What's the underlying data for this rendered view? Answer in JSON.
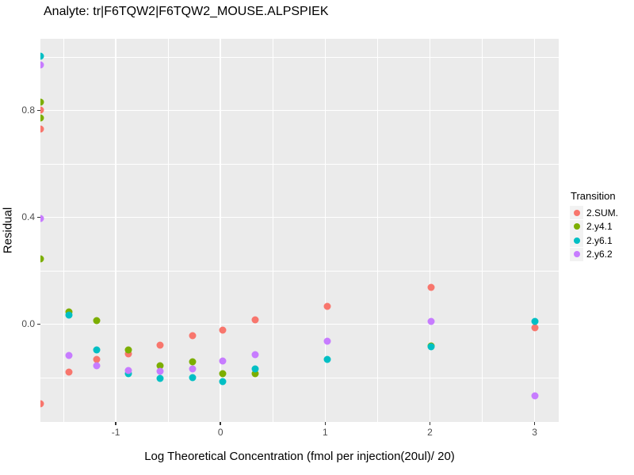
{
  "chart_data": {
    "type": "scatter",
    "title": "Analyte: tr|F6TQW2|F6TQW2_MOUSE.ALPSPIEK",
    "xlabel": "Log Theoretical Concentration (fmol per injection(20ul)/ 20)",
    "ylabel": "Residual",
    "xlim": [
      -1.72,
      3.23
    ],
    "ylim": [
      -0.366,
      1.068
    ],
    "x_ticks": [
      -1,
      0,
      1,
      2,
      3
    ],
    "x_tick_labels": [
      "-1",
      "0",
      "1",
      "2",
      "3"
    ],
    "y_ticks": [
      0.0,
      0.4,
      0.8
    ],
    "y_tick_labels": [
      "0.0",
      "0.4",
      "0.8"
    ],
    "x_minor_ticks": [
      -1.5,
      -0.5,
      0.5,
      1.5,
      2.5
    ],
    "y_minor_ticks": [
      -0.2,
      0.2,
      0.6,
      1.0
    ],
    "grid": "on",
    "legend": {
      "title": "Transition",
      "position": "right"
    },
    "colors": {
      "panel_bg": "#EBEBEB",
      "gridline": "#FFFFFF",
      "tick_label": "#4D4D4D",
      "text": "#000000",
      "legend_key_bg": "#F2F2F2"
    },
    "series": [
      {
        "name": "2.SUM.",
        "color": "#F8766D",
        "points": [
          [
            -1.72,
            0.801
          ],
          [
            -1.72,
            0.73
          ],
          [
            -1.72,
            -0.298
          ],
          [
            -1.45,
            -0.179
          ],
          [
            -1.18,
            -0.132
          ],
          [
            -0.88,
            -0.111
          ],
          [
            -0.58,
            -0.079
          ],
          [
            -0.27,
            -0.043
          ],
          [
            0.02,
            -0.022
          ],
          [
            0.33,
            0.016
          ],
          [
            1.02,
            0.067
          ],
          [
            2.01,
            0.138
          ],
          [
            3.0,
            -0.013
          ]
        ]
      },
      {
        "name": "2.y4.1",
        "color": "#7CAE00",
        "points": [
          [
            -1.72,
            0.831
          ],
          [
            -1.72,
            0.772
          ],
          [
            -1.72,
            0.244
          ],
          [
            -1.45,
            0.045
          ],
          [
            -1.18,
            0.013
          ],
          [
            -0.88,
            -0.096
          ],
          [
            -0.58,
            -0.156
          ],
          [
            -0.27,
            -0.141
          ],
          [
            0.02,
            -0.185
          ],
          [
            0.33,
            -0.185
          ],
          [
            2.01,
            -0.081
          ]
        ]
      },
      {
        "name": "2.y6.1",
        "color": "#00BFC4",
        "points": [
          [
            -1.72,
            1.003
          ],
          [
            -1.45,
            0.034
          ],
          [
            -1.18,
            -0.096
          ],
          [
            -0.88,
            -0.185
          ],
          [
            -0.58,
            -0.203
          ],
          [
            -0.27,
            -0.2
          ],
          [
            0.02,
            -0.215
          ],
          [
            0.33,
            -0.167
          ],
          [
            1.02,
            -0.132
          ],
          [
            2.01,
            -0.084
          ],
          [
            3.0,
            0.01
          ]
        ]
      },
      {
        "name": "2.y6.2",
        "color": "#C77CFF",
        "points": [
          [
            -1.72,
            0.97
          ],
          [
            -1.72,
            0.396
          ],
          [
            -1.45,
            -0.117
          ],
          [
            -1.18,
            -0.156
          ],
          [
            -0.88,
            -0.173
          ],
          [
            -0.58,
            -0.176
          ],
          [
            -0.27,
            -0.167
          ],
          [
            0.02,
            -0.138
          ],
          [
            0.33,
            -0.114
          ],
          [
            1.02,
            -0.064
          ],
          [
            2.01,
            0.01
          ],
          [
            3.0,
            -0.268
          ]
        ]
      }
    ]
  }
}
